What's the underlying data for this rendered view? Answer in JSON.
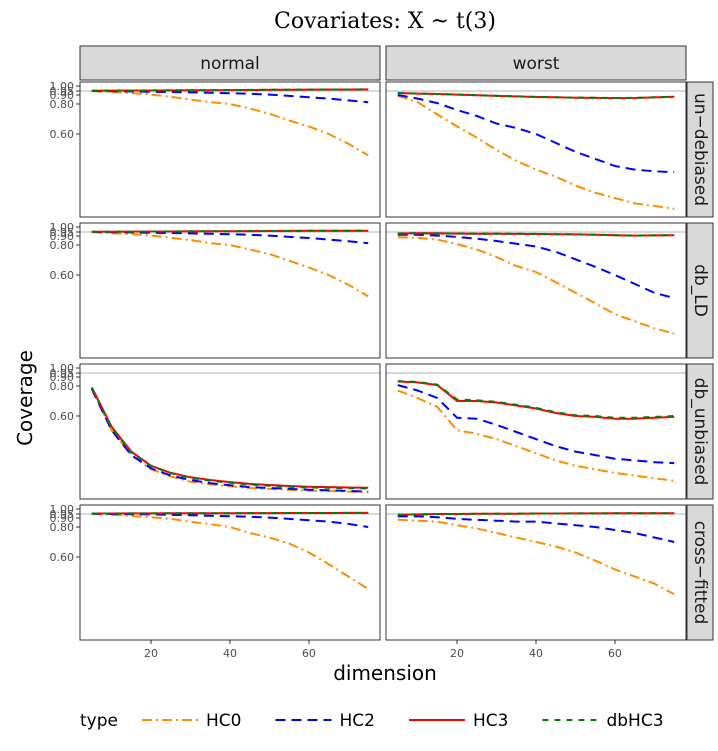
{
  "chart_data": {
    "type": "line",
    "title": "Covariates: X ~ t(3)",
    "xlabel": "dimension",
    "ylabel": "Coverage",
    "xlim": [
      2,
      78
    ],
    "x_ticks": [
      20,
      40,
      60
    ],
    "y_ticks": [
      0.6,
      0.8,
      0.9,
      0.95,
      1.0
    ],
    "y_tick_labels": [
      "0.60",
      "0.80",
      "0.90",
      "0.95",
      "1.00"
    ],
    "y_scale": "custom-compressed",
    "reference_line": 0.95,
    "columns": [
      "normal",
      "worst"
    ],
    "rows": [
      "un−debiased",
      "db_LD",
      "db_unbiased",
      "cross−fitted"
    ],
    "legend": {
      "title": "type",
      "position": "bottom",
      "entries": [
        "HC0",
        "HC2",
        "HC3",
        "dbHC3"
      ]
    },
    "series_styles": {
      "HC0": {
        "color": "#ff8c00",
        "dash": "10,4,2,4"
      },
      "HC2": {
        "color": "#0000ff",
        "dash": "10,6"
      },
      "HC3": {
        "color": "#ff0000",
        "dash": ""
      },
      "dbHC3": {
        "color": "#008000",
        "dash": "6,6"
      }
    },
    "x": [
      5,
      10,
      15,
      20,
      25,
      30,
      35,
      40,
      45,
      50,
      55,
      60,
      65,
      70,
      75
    ],
    "panels": [
      {
        "row": 0,
        "col": 0,
        "series": [
          {
            "name": "HC0",
            "values": [
              0.95,
              0.935,
              0.925,
              0.905,
              0.88,
              0.85,
              0.82,
              0.8,
              0.77,
              0.735,
              0.69,
              0.65,
              0.6,
              0.545,
              0.48
            ]
          },
          {
            "name": "HC2",
            "values": [
              0.95,
              0.947,
              0.945,
              0.94,
              0.937,
              0.933,
              0.928,
              0.922,
              0.915,
              0.905,
              0.89,
              0.875,
              0.86,
              0.84,
              0.82
            ]
          },
          {
            "name": "HC3",
            "values": [
              0.952,
              0.954,
              0.955,
              0.955,
              0.956,
              0.957,
              0.958,
              0.959,
              0.96,
              0.962,
              0.963,
              0.964,
              0.965,
              0.965,
              0.966
            ]
          },
          {
            "name": "dbHC3",
            "values": [
              0.952,
              0.954,
              0.955,
              0.956,
              0.957,
              0.958,
              0.958,
              0.96,
              0.961,
              0.962,
              0.963,
              0.964,
              0.965,
              0.965,
              0.966
            ]
          }
        ]
      },
      {
        "row": 0,
        "col": 1,
        "series": [
          {
            "name": "HC0",
            "values": [
              0.89,
              0.82,
              0.73,
              0.65,
              0.58,
              0.51,
              0.45,
              0.4,
              0.36,
              0.31,
              0.27,
              0.24,
              0.21,
              0.195,
              0.18
            ]
          },
          {
            "name": "HC2",
            "values": [
              0.9,
              0.86,
              0.81,
              0.76,
              0.72,
              0.67,
              0.64,
              0.6,
              0.55,
              0.5,
              0.46,
              0.42,
              0.4,
              0.39,
              0.385
            ]
          },
          {
            "name": "HC3",
            "values": [
              0.925,
              0.917,
              0.912,
              0.905,
              0.898,
              0.89,
              0.884,
              0.878,
              0.874,
              0.87,
              0.868,
              0.866,
              0.867,
              0.873,
              0.88
            ]
          },
          {
            "name": "dbHC3",
            "values": [
              0.926,
              0.918,
              0.913,
              0.906,
              0.899,
              0.891,
              0.885,
              0.879,
              0.875,
              0.871,
              0.869,
              0.867,
              0.868,
              0.874,
              0.881
            ]
          }
        ]
      },
      {
        "row": 1,
        "col": 0,
        "series": [
          {
            "name": "HC0",
            "values": [
              0.95,
              0.935,
              0.925,
              0.905,
              0.88,
              0.855,
              0.82,
              0.8,
              0.77,
              0.74,
              0.695,
              0.65,
              0.6,
              0.545,
              0.48
            ]
          },
          {
            "name": "HC2",
            "values": [
              0.95,
              0.947,
              0.945,
              0.94,
              0.937,
              0.932,
              0.928,
              0.922,
              0.915,
              0.905,
              0.89,
              0.878,
              0.86,
              0.842,
              0.82
            ]
          },
          {
            "name": "HC3",
            "values": [
              0.952,
              0.953,
              0.954,
              0.955,
              0.955,
              0.956,
              0.957,
              0.958,
              0.959,
              0.96,
              0.961,
              0.962,
              0.962,
              0.963,
              0.963
            ]
          },
          {
            "name": "dbHC3",
            "values": [
              0.952,
              0.953,
              0.954,
              0.955,
              0.956,
              0.957,
              0.957,
              0.958,
              0.959,
              0.96,
              0.961,
              0.962,
              0.963,
              0.963,
              0.964
            ]
          }
        ]
      },
      {
        "row": 1,
        "col": 1,
        "series": [
          {
            "name": "HC0",
            "values": [
              0.885,
              0.88,
              0.86,
              0.81,
              0.77,
              0.72,
              0.66,
              0.62,
              0.56,
              0.5,
              0.44,
              0.38,
              0.34,
              0.3,
              0.27
            ]
          },
          {
            "name": "HC2",
            "values": [
              0.915,
              0.915,
              0.905,
              0.89,
              0.87,
              0.845,
              0.815,
              0.79,
              0.755,
              0.705,
              0.655,
              0.6,
              0.55,
              0.5,
              0.47
            ]
          },
          {
            "name": "HC3",
            "values": [
              0.93,
              0.935,
              0.932,
              0.93,
              0.928,
              0.927,
              0.926,
              0.925,
              0.922,
              0.92,
              0.915,
              0.91,
              0.905,
              0.908,
              0.91
            ]
          },
          {
            "name": "dbHC3",
            "values": [
              0.931,
              0.936,
              0.933,
              0.931,
              0.929,
              0.928,
              0.927,
              0.926,
              0.923,
              0.921,
              0.916,
              0.911,
              0.906,
              0.909,
              0.911
            ]
          }
        ]
      },
      {
        "row": 2,
        "col": 0,
        "series": [
          {
            "name": "HC0",
            "values": [
              0.78,
              0.52,
              0.38,
              0.3,
              0.26,
              0.23,
              0.215,
              0.205,
              0.195,
              0.19,
              0.185,
              0.18,
              0.178,
              0.175,
              0.172
            ]
          },
          {
            "name": "HC2",
            "values": [
              0.78,
              0.52,
              0.38,
              0.305,
              0.265,
              0.24,
              0.222,
              0.21,
              0.2,
              0.195,
              0.19,
              0.185,
              0.182,
              0.178,
              0.175
            ]
          },
          {
            "name": "HC3",
            "values": [
              0.79,
              0.54,
              0.4,
              0.32,
              0.28,
              0.255,
              0.24,
              0.228,
              0.218,
              0.212,
              0.206,
              0.202,
              0.2,
              0.198,
              0.196
            ]
          },
          {
            "name": "dbHC3",
            "values": [
              0.79,
              0.535,
              0.395,
              0.318,
              0.278,
              0.252,
              0.236,
              0.224,
              0.214,
              0.208,
              0.202,
              0.198,
              0.196,
              0.194,
              0.192
            ]
          }
        ]
      },
      {
        "row": 2,
        "col": 1,
        "series": [
          {
            "name": "HC0",
            "values": [
              0.77,
              0.72,
              0.66,
              0.52,
              0.5,
              0.47,
              0.43,
              0.39,
              0.35,
              0.32,
              0.3,
              0.28,
              0.265,
              0.25,
              0.235
            ]
          },
          {
            "name": "HC2",
            "values": [
              0.81,
              0.77,
              0.72,
              0.59,
              0.585,
              0.55,
              0.51,
              0.47,
              0.43,
              0.4,
              0.38,
              0.36,
              0.35,
              0.34,
              0.335
            ]
          },
          {
            "name": "HC3",
            "values": [
              0.85,
              0.84,
              0.81,
              0.7,
              0.7,
              0.69,
              0.67,
              0.65,
              0.62,
              0.6,
              0.595,
              0.585,
              0.585,
              0.59,
              0.595
            ]
          },
          {
            "name": "dbHC3",
            "values": [
              0.855,
              0.845,
              0.815,
              0.71,
              0.705,
              0.695,
              0.675,
              0.655,
              0.625,
              0.605,
              0.6,
              0.59,
              0.59,
              0.595,
              0.6
            ]
          }
        ]
      },
      {
        "row": 3,
        "col": 0,
        "series": [
          {
            "name": "HC0",
            "values": [
              0.95,
              0.94,
              0.925,
              0.91,
              0.89,
              0.86,
              0.83,
              0.8,
              0.76,
              0.73,
              0.69,
              0.63,
              0.56,
              0.49,
              0.42
            ]
          },
          {
            "name": "HC2",
            "values": [
              0.952,
              0.95,
              0.948,
              0.945,
              0.94,
              0.935,
              0.928,
              0.922,
              0.915,
              0.905,
              0.89,
              0.875,
              0.86,
              0.835,
              0.8
            ]
          },
          {
            "name": "HC3",
            "values": [
              0.955,
              0.955,
              0.956,
              0.956,
              0.957,
              0.957,
              0.958,
              0.958,
              0.959,
              0.959,
              0.96,
              0.96,
              0.96,
              0.961,
              0.961
            ]
          },
          {
            "name": "dbHC3",
            "values": [
              0.955,
              0.955,
              0.956,
              0.956,
              0.957,
              0.957,
              0.958,
              0.958,
              0.959,
              0.959,
              0.96,
              0.96,
              0.96,
              0.961,
              0.961
            ]
          }
        ]
      },
      {
        "row": 3,
        "col": 1,
        "series": [
          {
            "name": "HC0",
            "values": [
              0.88,
              0.87,
              0.86,
              0.82,
              0.79,
              0.76,
              0.73,
              0.7,
              0.67,
              0.63,
              0.58,
              0.53,
              0.49,
              0.45,
              0.39
            ]
          },
          {
            "name": "HC2",
            "values": [
              0.92,
              0.92,
              0.91,
              0.89,
              0.88,
              0.87,
              0.86,
              0.86,
              0.84,
              0.82,
              0.8,
              0.78,
              0.76,
              0.73,
              0.7
            ]
          },
          {
            "name": "HC3",
            "values": [
              0.94,
              0.945,
              0.95,
              0.95,
              0.952,
              0.953,
              0.953,
              0.955,
              0.955,
              0.956,
              0.956,
              0.957,
              0.957,
              0.958,
              0.958
            ]
          },
          {
            "name": "dbHC3",
            "values": [
              0.94,
              0.945,
              0.95,
              0.95,
              0.952,
              0.953,
              0.953,
              0.955,
              0.955,
              0.956,
              0.956,
              0.957,
              0.957,
              0.958,
              0.958
            ]
          }
        ]
      }
    ]
  }
}
